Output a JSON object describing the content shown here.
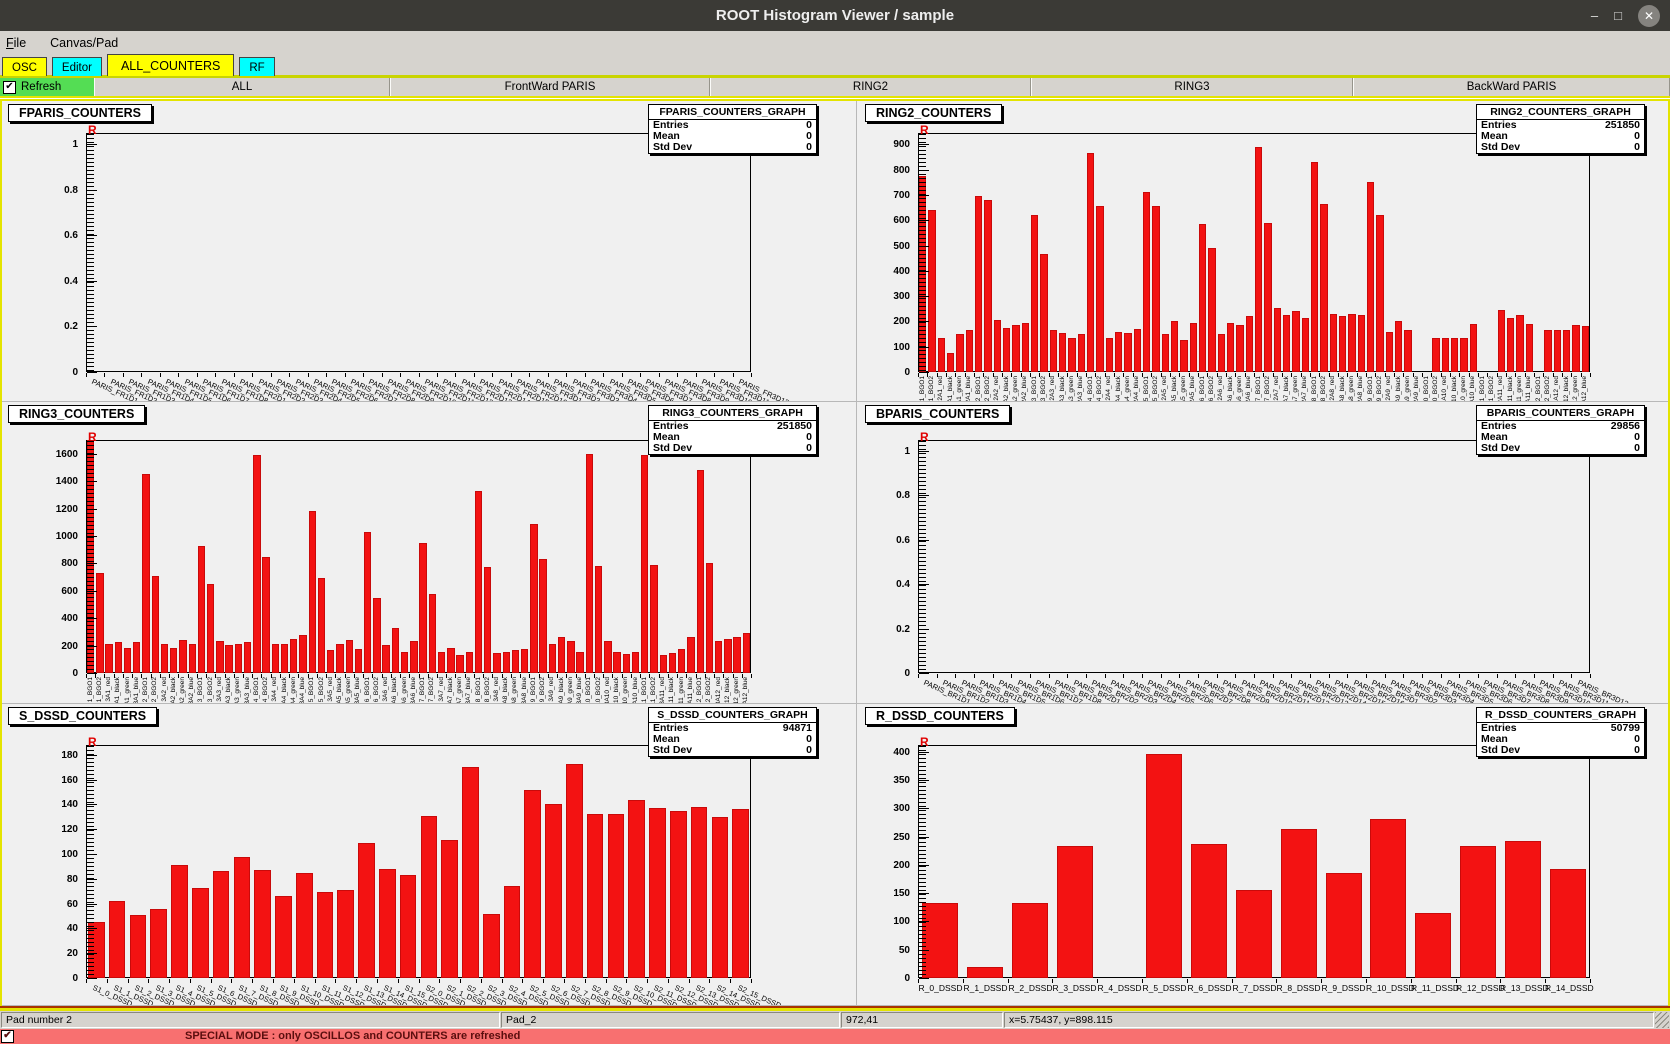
{
  "window": {
    "title": "ROOT Histogram Viewer / sample",
    "minimize_glyph": "–",
    "maximize_glyph": "□",
    "close_glyph": "✕"
  },
  "menu": {
    "items": [
      "File",
      "Canvas/Pad"
    ]
  },
  "tabs": [
    {
      "label": "OSC",
      "color": "#ffff00",
      "selected": false
    },
    {
      "label": "Editor",
      "color": "#00ffff",
      "selected": false
    },
    {
      "label": "ALL_COUNTERS",
      "color": "#ffff00",
      "selected": true
    },
    {
      "label": "RF",
      "color": "#00ffff",
      "selected": false
    }
  ],
  "controls": {
    "refresh_label": "Refresh",
    "refresh_checked": true,
    "check_glyph": "✔",
    "buttons": [
      "ALL",
      "FrontWard PARIS",
      "RING2",
      "RING3",
      "BackWard PARIS"
    ]
  },
  "colors": {
    "bar": "#f31212",
    "accent_yellow": "#e4e400",
    "accent_green": "#54dd54",
    "special_red": "#f87070"
  },
  "r_marker": "R",
  "stats_labels": {
    "entries": "Entries",
    "mean": "Mean",
    "std_dev": "Std Dev"
  },
  "pads": [
    {
      "id": "fparis",
      "title": "FPARIS_COUNTERS",
      "stats": {
        "title": "FPARIS_COUNTERS_GRAPH",
        "entries": "0",
        "mean": "0",
        "std_dev": "0"
      },
      "chart": {
        "type": "bar",
        "ymax": 1.05,
        "ytick_values": [
          0,
          0.2,
          0.4,
          0.6,
          0.8,
          1
        ],
        "ytick_labels": [
          "0",
          "0.2",
          "0.4",
          "0.6",
          "0.8",
          "1"
        ],
        "label_style": "diag",
        "categories": [
          "PARIS_FR1D1",
          "PARIS_FR1D2",
          "PARIS_FR1D3",
          "PARIS_FR1D4",
          "PARIS_FR1D5",
          "PARIS_FR1D6",
          "PARIS_FR1D7",
          "PARIS_FR1D8",
          "PARIS_FR2D1",
          "PARIS_FR2D2",
          "PARIS_FR2D3",
          "PARIS_FR2D4",
          "PARIS_FR2D5",
          "PARIS_FR2D6",
          "PARIS_FR2D7",
          "PARIS_FR2D8",
          "PARIS_FR2D9",
          "PARIS_FR2D10",
          "PARIS_FR2D11",
          "PARIS_FR2D12",
          "PARIS_FR2D13",
          "PARIS_FR2D14",
          "PARIS_FR2D15",
          "PARIS_FR2D16",
          "PARIS_FR3D1",
          "PARIS_FR3D2",
          "PARIS_FR3D3",
          "PARIS_FR3D4",
          "PARIS_FR3D5",
          "PARIS_FR3D6",
          "PARIS_FR3D7",
          "PARIS_FR3D8",
          "PARIS_FR3D9",
          "PARIS_FR3D10",
          "PARIS_FR3D11",
          "PARIS_FR3D12"
        ],
        "values": []
      }
    },
    {
      "id": "ring2",
      "title": "RING2_COUNTERS",
      "stats": {
        "title": "RING2_COUNTERS_GRAPH",
        "entries": "251850",
        "mean": "0",
        "std_dev": "0"
      },
      "chart": {
        "type": "bar",
        "ymax": 945,
        "ytick_values": [
          0,
          100,
          200,
          300,
          400,
          500,
          600,
          700,
          800,
          900
        ],
        "ytick_labels": [
          "0",
          "100",
          "200",
          "300",
          "400",
          "500",
          "600",
          "700",
          "800",
          "900"
        ],
        "label_style": "vert",
        "categories": [
          "1_BGO1",
          "1_BGO2",
          "2A1_red",
          "2A1_black",
          "2A1_green",
          "2A1_blue",
          "2_BGO1",
          "2_BGO2",
          "2A2_red",
          "2A2_black",
          "2A2_green",
          "2A2_blue",
          "3_BGO1",
          "3_BGO2",
          "2A3_red",
          "2A3_black",
          "2A3_green",
          "2A3_blue",
          "4_BGO1",
          "4_BGO2",
          "2A4_red",
          "2A4_black",
          "2A4_green",
          "2A4_blue",
          "5_BGO1",
          "5_BGO2",
          "2A5_red",
          "2A5_black",
          "2A5_green",
          "2A5_blue",
          "6_BGO1",
          "6_BGO2",
          "2A6_red",
          "2A6_black",
          "2A6_green",
          "2A6_blue",
          "7_BGO1",
          "7_BGO2",
          "2A7_red",
          "2A7_black",
          "2A7_green",
          "2A7_blue",
          "8_BGO1",
          "8_BGO2",
          "2A8_red",
          "2A8_black",
          "2A8_green",
          "2A8_blue",
          "9_BGO1",
          "9_BGO2",
          "2A9_red",
          "2A9_black",
          "2A9_green",
          "2A9_blue",
          "10_BGO1",
          "10_BGO2",
          "2A10_red",
          "2A10_black",
          "2A10_green",
          "2A10_blue",
          "11_BGO1",
          "11_BGO2",
          "2A11_red",
          "2A11_black",
          "2A11_green",
          "2A11_blue",
          "12_BGO1",
          "12_BGO2",
          "2A12_red",
          "2A12_black",
          "2A12_green",
          "2A12_blue"
        ],
        "values": [
          775,
          640,
          135,
          75,
          150,
          165,
          695,
          680,
          205,
          175,
          185,
          195,
          620,
          465,
          165,
          155,
          135,
          150,
          865,
          655,
          135,
          160,
          155,
          170,
          710,
          655,
          150,
          200,
          125,
          195,
          585,
          490,
          150,
          195,
          185,
          220,
          890,
          590,
          255,
          225,
          240,
          215,
          830,
          665,
          230,
          220,
          230,
          225,
          750,
          620,
          160,
          200,
          165,
          0,
          0,
          135,
          135,
          135,
          135,
          190,
          0,
          0,
          245,
          215,
          225,
          190,
          0,
          165,
          165,
          165,
          185,
          180
        ]
      }
    },
    {
      "id": "ring3",
      "title": "RING3_COUNTERS",
      "stats": {
        "title": "RING3_COUNTERS_GRAPH",
        "entries": "251850",
        "mean": "0",
        "std_dev": "0"
      },
      "chart": {
        "type": "bar",
        "ymax": 1700,
        "ytick_values": [
          0,
          200,
          400,
          600,
          800,
          1000,
          1200,
          1400,
          1600
        ],
        "ytick_labels": [
          "0",
          "200",
          "400",
          "600",
          "800",
          "1000",
          "1200",
          "1400",
          "1600"
        ],
        "label_style": "vert",
        "categories": [
          "1_BGO1",
          "1_BGO2",
          "3A1_red",
          "3A1_black",
          "3A1_green",
          "3A1_blue",
          "2_BGO1",
          "2_BGO2",
          "3A2_red",
          "3A2_black",
          "3A2_green",
          "3A2_blue",
          "3_BGO1",
          "3_BGO2",
          "3A3_red",
          "3A3_black",
          "3A3_green",
          "3A3_blue",
          "4_BGO1",
          "4_BGO2",
          "3A4_red",
          "3A4_black",
          "3A4_green",
          "3A4_blue",
          "5_BGO1",
          "5_BGO2",
          "3A5_red",
          "3A5_black",
          "3A5_green",
          "3A5_blue",
          "6_BGO1",
          "6_BGO2",
          "3A6_red",
          "3A6_black",
          "3A6_green",
          "3A6_blue",
          "7_BGO1",
          "7_BGO2",
          "3A7_red",
          "3A7_black",
          "3A7_green",
          "3A7_blue",
          "8_BGO1",
          "8_BGO2",
          "3A8_red",
          "3A8_black",
          "3A8_green",
          "3A8_blue",
          "9_BGO1",
          "9_BGO2",
          "3A9_red",
          "3A9_black",
          "3A9_green",
          "3A9_blue",
          "10_BGO1",
          "10_BGO2",
          "3A10_red",
          "3A10_black",
          "3A10_green",
          "3A10_blue",
          "11_BGO1",
          "11_BGO2",
          "3A11_red",
          "3A11_black",
          "3A11_green",
          "3A11_blue",
          "12_BGO1",
          "12_BGO2",
          "3A12_red",
          "3A12_black",
          "3A12_green",
          "3A12_blue"
        ],
        "values": [
          1700,
          730,
          215,
          225,
          185,
          225,
          1450,
          710,
          215,
          180,
          240,
          215,
          930,
          650,
          235,
          205,
          215,
          225,
          1590,
          850,
          210,
          215,
          245,
          280,
          1180,
          690,
          170,
          215,
          240,
          175,
          1030,
          545,
          205,
          330,
          150,
          235,
          950,
          575,
          155,
          180,
          130,
          155,
          1330,
          775,
          145,
          150,
          165,
          175,
          1090,
          830,
          210,
          260,
          235,
          150,
          1600,
          780,
          235,
          150,
          140,
          155,
          1590,
          790,
          130,
          145,
          175,
          260,
          1480,
          800,
          230,
          245,
          260,
          295
        ]
      }
    },
    {
      "id": "bparis",
      "title": "BPARIS_COUNTERS",
      "stats": {
        "title": "BPARIS_COUNTERS_GRAPH",
        "entries": "29856",
        "mean": "0",
        "std_dev": "0"
      },
      "chart": {
        "type": "bar",
        "ymax": 1.05,
        "ytick_values": [
          0,
          0.2,
          0.4,
          0.6,
          0.8,
          1
        ],
        "ytick_labels": [
          "0",
          "0.2",
          "0.4",
          "0.6",
          "0.8",
          "1"
        ],
        "label_style": "diag",
        "categories": [
          "PARIS_BR1D1",
          "PARIS_BR1D2",
          "PARIS_BR1D3",
          "PARIS_BR1D4",
          "PARIS_BR1D5",
          "PARIS_BR1D6",
          "PARIS_BR1D7",
          "PARIS_BR1D8",
          "PARIS_BR2D1",
          "PARIS_BR2D2",
          "PARIS_BR2D3",
          "PARIS_BR2D4",
          "PARIS_BR2D5",
          "PARIS_BR2D6",
          "PARIS_BR2D7",
          "PARIS_BR2D8",
          "PARIS_BR2D9",
          "PARIS_BR2D10",
          "PARIS_BR2D11",
          "PARIS_BR2D12",
          "PARIS_BR2D13",
          "PARIS_BR2D14",
          "PARIS_BR2D15",
          "PARIS_BR2D16",
          "PARIS_BR3D1",
          "PARIS_BR3D2",
          "PARIS_BR3D3",
          "PARIS_BR3D4",
          "PARIS_BR3D5",
          "PARIS_BR3D6",
          "PARIS_BR3D7",
          "PARIS_BR3D8",
          "PARIS_BR3D9",
          "PARIS_BR3D10",
          "PARIS_BR3D11",
          "PARIS_BR3D12"
        ],
        "values": []
      }
    },
    {
      "id": "s_dssd",
      "title": "S_DSSD_COUNTERS",
      "stats": {
        "title": "S_DSSD_COUNTERS_GRAPH",
        "entries": "94871",
        "mean": "0",
        "std_dev": "0"
      },
      "chart": {
        "type": "bar",
        "ymax": 188,
        "ytick_values": [
          0,
          20,
          40,
          60,
          80,
          100,
          120,
          140,
          160,
          180
        ],
        "ytick_labels": [
          "0",
          "20",
          "40",
          "60",
          "80",
          "100",
          "120",
          "140",
          "160",
          "180"
        ],
        "label_style": "diag",
        "categories": [
          "S1_0_DSSD",
          "S1_1_DSSD",
          "S1_2_DSSD",
          "S1_3_DSSD",
          "S1_4_DSSD",
          "S1_5_DSSD",
          "S1_6_DSSD",
          "S1_7_DSSD",
          "S1_8_DSSD",
          "S1_9_DSSD",
          "S1_10_DSSD",
          "S1_11_DSSD",
          "S1_12_DSSD",
          "S1_13_DSSD",
          "S1_14_DSSD",
          "S1_15_DSSD",
          "S2_0_DSSD",
          "S2_1_DSSD",
          "S2_2_DSSD",
          "S2_3_DSSD",
          "S2_4_DSSD",
          "S2_5_DSSD",
          "S2_6_DSSD",
          "S2_7_DSSD",
          "S2_8_DSSD",
          "S2_9_DSSD",
          "S2_10_DSSD",
          "S2_11_DSSD",
          "S2_12_DSSD",
          "S2_13_DSSD",
          "S2_14_DSSD",
          "S2_15_DSSD"
        ],
        "values": [
          45,
          62,
          51,
          56,
          91,
          73,
          86,
          98,
          87,
          66,
          85,
          69,
          71,
          109,
          88,
          83,
          131,
          111,
          170,
          52,
          74,
          152,
          140,
          173,
          132,
          132,
          144,
          137,
          135,
          138,
          130,
          136
        ]
      }
    },
    {
      "id": "r_dssd",
      "title": "R_DSSD_COUNTERS",
      "stats": {
        "title": "R_DSSD_COUNTERS_GRAPH",
        "entries": "50799",
        "mean": "0",
        "std_dev": "0"
      },
      "chart": {
        "type": "bar",
        "ymax": 412,
        "ytick_values": [
          0,
          50,
          100,
          150,
          200,
          250,
          300,
          350,
          400
        ],
        "ytick_labels": [
          "0",
          "50",
          "100",
          "150",
          "200",
          "250",
          "300",
          "350",
          "400"
        ],
        "label_style": "horiz",
        "categories": [
          "R_0_DSSD",
          "R_1_DSSD",
          "R_2_DSSD",
          "R_3_DSSD",
          "R_4_DSSD",
          "R_5_DSSD",
          "R_6_DSSD",
          "R_7_DSSD",
          "R_8_DSSD",
          "R_9_DSSD",
          "R_10_DSSD",
          "R_11_DSSD",
          "R_12_DSSD",
          "R_13_DSSD",
          "R_14_DSSD"
        ],
        "values": [
          133,
          19,
          132,
          233,
          0,
          396,
          237,
          156,
          264,
          185,
          281,
          115,
          233,
          243,
          192
        ]
      }
    }
  ],
  "status_bar": {
    "cells": [
      "Pad number 2",
      "Pad_2",
      "972,41",
      "x=5.75437, y=898.115"
    ]
  },
  "special_bar": {
    "checked": true,
    "text": "SPECIAL MODE : only OSCILLOS and COUNTERS are refreshed"
  }
}
